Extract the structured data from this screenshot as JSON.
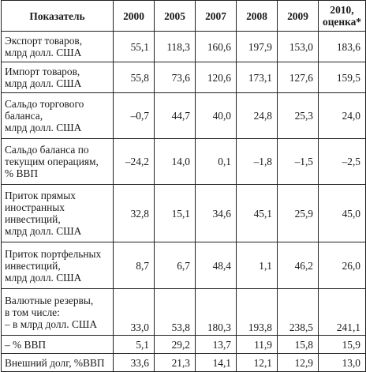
{
  "table": {
    "headers": [
      "Показатель",
      "2000",
      "2005",
      "2007",
      "2008",
      "2009",
      "2010,\nоценка*"
    ],
    "header_2010_line1": "2010,",
    "header_2010_line2": "оценка*",
    "rows": [
      {
        "label_lines": [
          "Экспорт товаров,",
          "млрд долл. США"
        ],
        "values": [
          "55,1",
          "118,3",
          "160,6",
          "197,9",
          "153,0",
          "183,6"
        ]
      },
      {
        "label_lines": [
          "Импорт товаров,",
          "млрд долл. США"
        ],
        "values": [
          "55,8",
          "73,6",
          "120,6",
          "173,1",
          "127,6",
          "159,5"
        ]
      },
      {
        "label_lines": [
          "Сальдо торгового",
          "баланса,",
          "млрд долл. США"
        ],
        "values": [
          "–0,7",
          "44,7",
          "40,0",
          "24,8",
          "25,3",
          "24,0"
        ]
      },
      {
        "label_lines": [
          "Сальдо баланса по",
          "текущим операциям,",
          "% ВВП"
        ],
        "values": [
          "–24,2",
          "14,0",
          "0,1",
          "–1,8",
          "–1,5",
          "–2,5"
        ]
      },
      {
        "label_lines": [
          "Приток прямых",
          "иностранных",
          "инвестиций,",
          "млрд долл. США"
        ],
        "values": [
          "32,8",
          "15,1",
          "34,6",
          "45,1",
          "25,9",
          "45,0"
        ]
      },
      {
        "label_lines": [
          "Приток портфельных",
          "инвестиций,",
          "млрд долл. США"
        ],
        "values": [
          "8,7",
          "6,7",
          "48,4",
          "1,1",
          "46,2",
          "26,0"
        ]
      },
      {
        "label_lines": [
          "Валютные резервы,",
          "в том числе:",
          "– в млрд долл. США"
        ],
        "values": [
          "33,0",
          "53,8",
          "180,3",
          "193,8",
          "238,5",
          "241,1"
        ]
      },
      {
        "label_lines": [
          "– % ВВП"
        ],
        "values": [
          "5,1",
          "29,2",
          "13,7",
          "11,9",
          "15,8",
          "15,9"
        ]
      },
      {
        "label_lines": [
          "Внешний долг, %ВВП"
        ],
        "values": [
          "33,6",
          "21,3",
          "14,1",
          "12,1",
          "12,9",
          "13,0"
        ]
      }
    ]
  }
}
